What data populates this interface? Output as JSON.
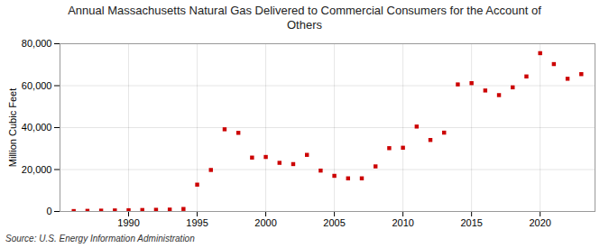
{
  "chart_data": {
    "type": "scatter",
    "title": "Annual Massachusetts Natural Gas Delivered to Commercial Consumers for the Account of\nOthers",
    "y_label": "Million Cubic Feet",
    "source": "Source: U.S. Energy Information Administration",
    "x": [
      1986,
      1987,
      1988,
      1989,
      1990,
      1991,
      1992,
      1993,
      1994,
      1995,
      1996,
      1997,
      1998,
      1999,
      2000,
      2001,
      2002,
      2003,
      2004,
      2005,
      2006,
      2007,
      2008,
      2009,
      2010,
      2011,
      2012,
      2013,
      2014,
      2015,
      2016,
      2017,
      2018,
      2019,
      2020,
      2021,
      2022,
      2023
    ],
    "values": [
      200,
      300,
      400,
      500,
      600,
      700,
      800,
      900,
      1200,
      12800,
      19800,
      39200,
      37500,
      25700,
      26000,
      23200,
      22600,
      27000,
      19500,
      17000,
      15800,
      15800,
      21500,
      30200,
      30400,
      40500,
      34100,
      37600,
      60600,
      61200,
      57700,
      55500,
      59200,
      64400,
      75500,
      70300,
      63300,
      65500
    ],
    "color": "#cc0000",
    "marker": "square",
    "xlim": [
      1985,
      2024
    ],
    "xticks": [
      1990,
      1995,
      2000,
      2005,
      2010,
      2015,
      2020
    ],
    "ylim": [
      0,
      80000
    ],
    "yticks": [
      0,
      {
        "value": 20000,
        "label": "20,000"
      },
      {
        "value": 40000,
        "label": "40,000"
      },
      {
        "value": 60000,
        "label": "60,000"
      },
      {
        "value": 80000,
        "label": "80,000"
      }
    ],
    "grid": true
  }
}
